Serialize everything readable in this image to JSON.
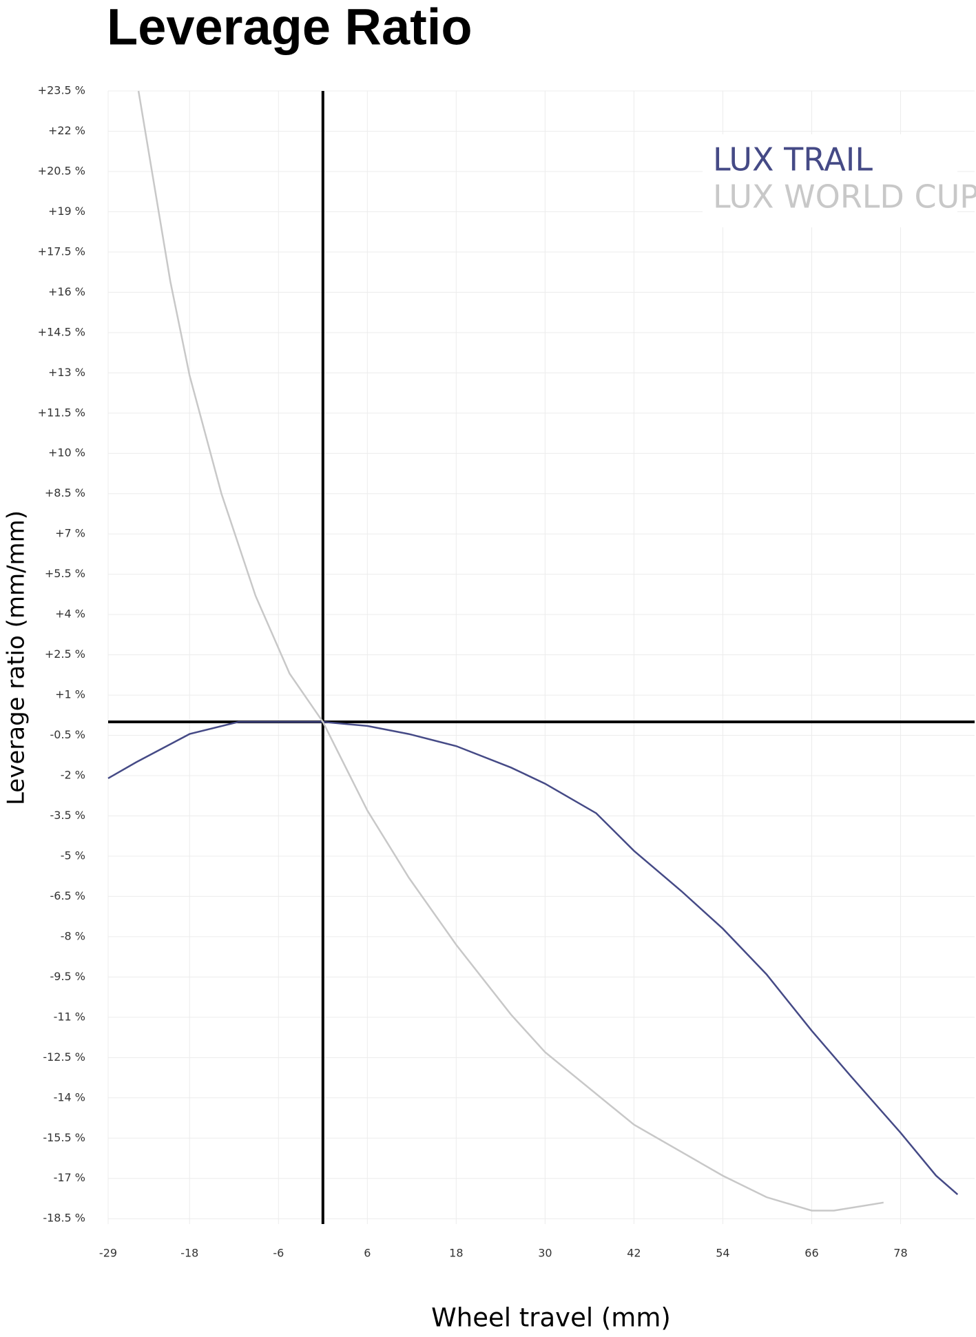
{
  "chart_data": {
    "type": "line",
    "title": "Leverage Ratio",
    "x_label": "Wheel travel (mm)",
    "y_label": "Leverage ratio (mm/mm)",
    "xlim": [
      -29,
      88
    ],
    "ylim": [
      -18.7,
      23.5
    ],
    "xticks": [
      -29,
      -18,
      -6,
      6,
      18,
      30,
      42,
      54,
      66,
      78
    ],
    "yticks": [
      {
        "value": 23.5,
        "label": "+23.5 %"
      },
      {
        "value": 22,
        "label": "+22 %"
      },
      {
        "value": 20.5,
        "label": "+20.5 %"
      },
      {
        "value": 19,
        "label": "+19 %"
      },
      {
        "value": 17.5,
        "label": "+17.5 %"
      },
      {
        "value": 16,
        "label": "+16 %"
      },
      {
        "value": 14.5,
        "label": "+14.5 %"
      },
      {
        "value": 13,
        "label": "+13 %"
      },
      {
        "value": 11.5,
        "label": "+11.5 %"
      },
      {
        "value": 10,
        "label": "+10 %"
      },
      {
        "value": 8.5,
        "label": "+8.5 %"
      },
      {
        "value": 7,
        "label": "+7 %"
      },
      {
        "value": 5.5,
        "label": "+5.5 %"
      },
      {
        "value": 4,
        "label": "+4 %"
      },
      {
        "value": 2.5,
        "label": "+2.5 %"
      },
      {
        "value": 1,
        "label": "+1 %"
      },
      {
        "value": -0.5,
        "label": "-0.5 %"
      },
      {
        "value": -2,
        "label": "-2 %"
      },
      {
        "value": -3.5,
        "label": "-3.5 %"
      },
      {
        "value": -5,
        "label": "-5 %"
      },
      {
        "value": -6.5,
        "label": "-6.5 %"
      },
      {
        "value": -8,
        "label": "-8 %"
      },
      {
        "value": -9.5,
        "label": "-9.5 %"
      },
      {
        "value": -11,
        "label": "-11 %"
      },
      {
        "value": -12.5,
        "label": "-12.5 %"
      },
      {
        "value": -14,
        "label": "-14 %"
      },
      {
        "value": -15.5,
        "label": "-15.5 %"
      },
      {
        "value": -17,
        "label": "-17 %"
      },
      {
        "value": -18.5,
        "label": "-18.5 %"
      }
    ],
    "grid": true,
    "legend": "upper right",
    "series": [
      {
        "name": "LUX TRAIL",
        "color": "#454a86",
        "x": [
          -29,
          -25.2,
          -18,
          -11.4,
          -6,
          0,
          6,
          11.6,
          18,
          25.4,
          30,
          36.9,
          42,
          48.4,
          54,
          59.9,
          66,
          71.3,
          78,
          82.8,
          85.7
        ],
        "values": [
          -2.1,
          -1.5,
          -0.45,
          0,
          0,
          0,
          -0.15,
          -0.45,
          -0.9,
          -1.7,
          -2.3,
          -3.4,
          -4.8,
          -6.3,
          -7.7,
          -9.4,
          -11.5,
          -13.2,
          -15.3,
          -16.9,
          -17.6
        ]
      },
      {
        "name": "LUX WORLD CUP",
        "color": "#c8c8c8",
        "x": [
          -24.9,
          -20.6,
          -18,
          -13.7,
          -9.1,
          -4.5,
          0,
          6,
          11.6,
          18,
          25.4,
          30,
          42,
          54,
          59.9,
          66,
          69,
          75.7
        ],
        "values": [
          23.5,
          16.4,
          12.9,
          8.5,
          4.7,
          1.8,
          0,
          -3.3,
          -5.8,
          -8.3,
          -10.9,
          -12.3,
          -15,
          -16.9,
          -17.7,
          -18.2,
          -18.2,
          -17.9
        ]
      }
    ]
  }
}
